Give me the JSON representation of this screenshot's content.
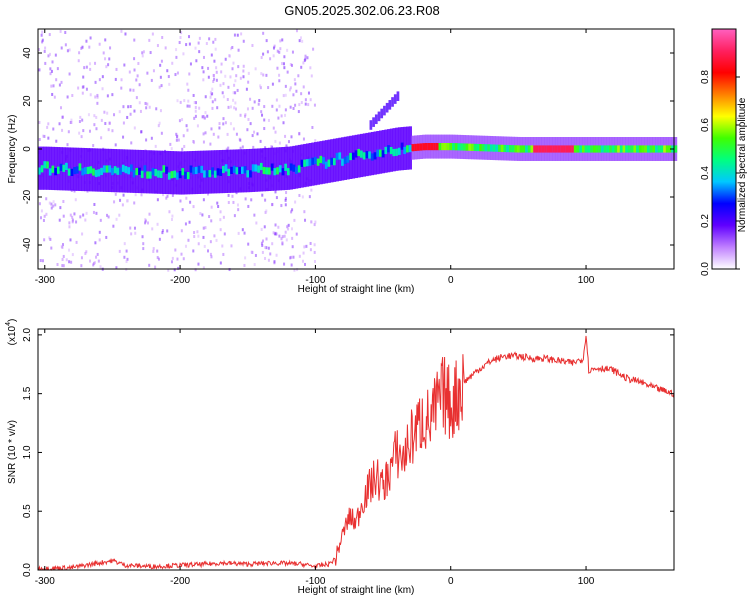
{
  "title": "GN05.2025.302.06.23.R08",
  "chart_data": [
    {
      "type": "heatmap",
      "name": "spectrogram",
      "xlabel": "Height of straight line (km)",
      "ylabel": "Frequency (Hz)",
      "xlim": [
        -305,
        165
      ],
      "ylim": [
        -50,
        50
      ],
      "xticks": [
        -300,
        -200,
        -100,
        0,
        100
      ],
      "yticks": [
        -40,
        -20,
        0,
        20,
        40
      ],
      "xtick_labels": [
        "-300",
        "-200",
        "-100",
        "0",
        "100"
      ],
      "ytick_labels": [
        "-40",
        "-20",
        "0",
        "20",
        "40"
      ],
      "colorbar": {
        "label": "Normalized spectral amplitude",
        "range": [
          0,
          1
        ],
        "ticks": [
          0.0,
          0.2,
          0.4,
          0.6,
          0.8
        ],
        "tick_labels": [
          "0.0",
          "0.2",
          "0.4",
          "0.6",
          "0.8"
        ],
        "colors": [
          "#ffffff",
          "#c080ff",
          "#6000ff",
          "#0000ff",
          "#00c8ff",
          "#00ff80",
          "#40ff00",
          "#ffff00",
          "#ff8000",
          "#ff0000",
          "#ff2060",
          "#ff60c0"
        ]
      },
      "ridge": {
        "x": [
          -300,
          -250,
          -200,
          -150,
          -120,
          -100,
          -80,
          -60,
          -40,
          -20,
          0,
          50,
          100,
          165
        ],
        "frequency": [
          -8,
          -9,
          -10,
          -9,
          -8,
          -6,
          -4,
          -2,
          0,
          1,
          1,
          0,
          0,
          0
        ]
      },
      "upper_branch": {
        "x": [
          -60,
          -50,
          -40
        ],
        "frequency": [
          10,
          16,
          22
        ]
      }
    },
    {
      "type": "line",
      "name": "snr",
      "xlabel": "Height of straight line (km)",
      "ylabel": "SNR (10 * v/v)",
      "multiplier_label": "(x10",
      "multiplier_exp": "4",
      "xlim": [
        -305,
        165
      ],
      "ylim": [
        0,
        2.05
      ],
      "xticks": [
        -300,
        -200,
        -100,
        0,
        100
      ],
      "yticks": [
        0.0,
        0.5,
        1.0,
        1.5,
        2.0
      ],
      "xtick_labels": [
        "-300",
        "-200",
        "-100",
        "0",
        "100"
      ],
      "ytick_labels": [
        "0.0",
        "0.5",
        "1.0",
        "1.5",
        "2.0"
      ],
      "color": "#e83030",
      "series": [
        {
          "name": "SNR",
          "x": [
            -305,
            -280,
            -260,
            -250,
            -240,
            -220,
            -200,
            -180,
            -170,
            -150,
            -130,
            -110,
            -100,
            -90,
            -85,
            -80,
            -75,
            -70,
            -65,
            -60,
            -55,
            -50,
            -45,
            -40,
            -35,
            -30,
            -25,
            -20,
            -15,
            -10,
            -5,
            0,
            5,
            10,
            20,
            30,
            40,
            50,
            60,
            70,
            80,
            90,
            98,
            100,
            102,
            110,
            120,
            130,
            140,
            150,
            165
          ],
          "y": [
            0.01,
            0.02,
            0.06,
            0.08,
            0.04,
            0.03,
            0.04,
            0.05,
            0.06,
            0.05,
            0.06,
            0.05,
            0.03,
            0.05,
            0.1,
            0.3,
            0.45,
            0.4,
            0.6,
            0.7,
            0.8,
            0.7,
            0.85,
            1.0,
            0.95,
            1.1,
            1.2,
            1.3,
            1.25,
            1.4,
            1.5,
            1.4,
            1.5,
            1.6,
            1.7,
            1.78,
            1.82,
            1.82,
            1.8,
            1.8,
            1.78,
            1.76,
            1.8,
            2.02,
            1.7,
            1.72,
            1.7,
            1.63,
            1.6,
            1.55,
            1.5
          ]
        }
      ]
    }
  ]
}
